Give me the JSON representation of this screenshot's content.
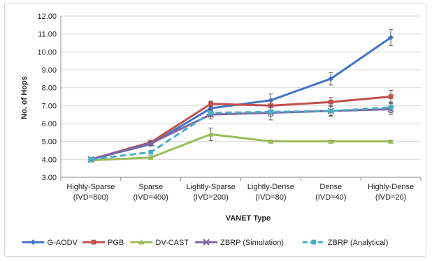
{
  "chart_data": {
    "type": "line",
    "title": "",
    "xlabel": "VANET Type",
    "ylabel": "No. of Hops",
    "ylim": [
      3.0,
      12.0
    ],
    "ytick_step": 1.0,
    "y_tick_labels": [
      "3.00",
      "4.00",
      "5.00",
      "6.00",
      "7.00",
      "8.00",
      "9.00",
      "10.00",
      "11.00",
      "12.00"
    ],
    "grid": "horizontal",
    "legend_position": "bottom",
    "categories": [
      [
        "Highly-Sparse",
        "(IVD=800)"
      ],
      [
        "Sparse",
        "(IVD=400)"
      ],
      [
        "Lightly-Sparse",
        "(IVD=200)"
      ],
      [
        "Lightly-Dense",
        "(IVD=80)"
      ],
      [
        "Dense",
        "(IVD=40)"
      ],
      [
        "Highly-Dense",
        "(IVD=20)"
      ]
    ],
    "series": [
      {
        "name": "G-AODV",
        "color": "#4472c4",
        "marker": "diamond",
        "dash": "solid",
        "values": [
          4.0,
          4.85,
          6.85,
          7.3,
          8.5,
          10.8
        ],
        "errors": [
          0.1,
          0.1,
          0.3,
          0.35,
          0.35,
          0.45
        ]
      },
      {
        "name": "PGB",
        "color": "#c0504d",
        "marker": "square",
        "dash": "solid",
        "values": [
          4.0,
          4.95,
          7.1,
          7.0,
          7.2,
          7.5
        ],
        "errors": [
          0.08,
          0.1,
          0.15,
          0.25,
          0.25,
          0.35
        ]
      },
      {
        "name": "DV-CAST",
        "color": "#9bbb59",
        "marker": "triangle",
        "dash": "solid",
        "values": [
          3.95,
          4.1,
          5.4,
          5.0,
          5.0,
          5.0
        ],
        "errors": [
          0.05,
          0.1,
          0.35,
          0.05,
          0.05,
          0.05
        ]
      },
      {
        "name": "ZBRP (Simulation)",
        "color": "#8064a2",
        "marker": "x",
        "dash": "solid",
        "values": [
          4.0,
          4.9,
          6.5,
          6.6,
          6.7,
          6.8
        ],
        "errors": [
          0.05,
          0.1,
          0.25,
          0.4,
          0.3,
          0.3
        ]
      },
      {
        "name": "ZBRP (Analytical)",
        "color": "#4bacc6",
        "marker": "square",
        "dash": "dashed",
        "values": [
          4.0,
          4.4,
          6.6,
          6.65,
          6.7,
          6.9
        ],
        "errors": [
          0.05,
          0.1,
          0.2,
          0.25,
          0.25,
          0.3
        ]
      }
    ]
  }
}
